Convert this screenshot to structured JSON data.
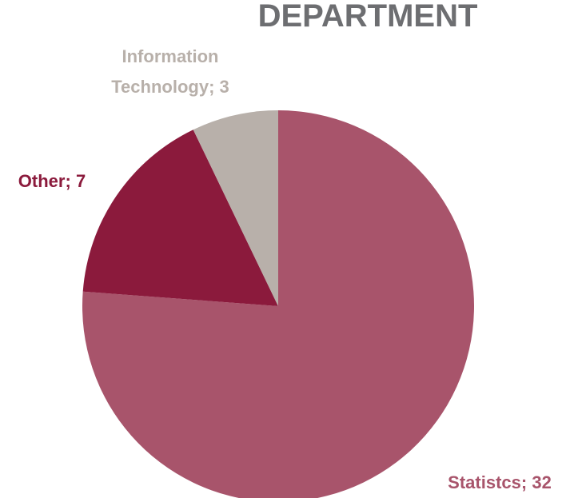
{
  "chart_data": {
    "type": "pie",
    "title": "DEPARTMENT",
    "categories": [
      "Statistcs",
      "Other",
      "Information Technology"
    ],
    "values": [
      32,
      7,
      3
    ],
    "colors": [
      "#a8546b",
      "#8b1a3c",
      "#b8b0aa"
    ],
    "label_separator": "; "
  }
}
